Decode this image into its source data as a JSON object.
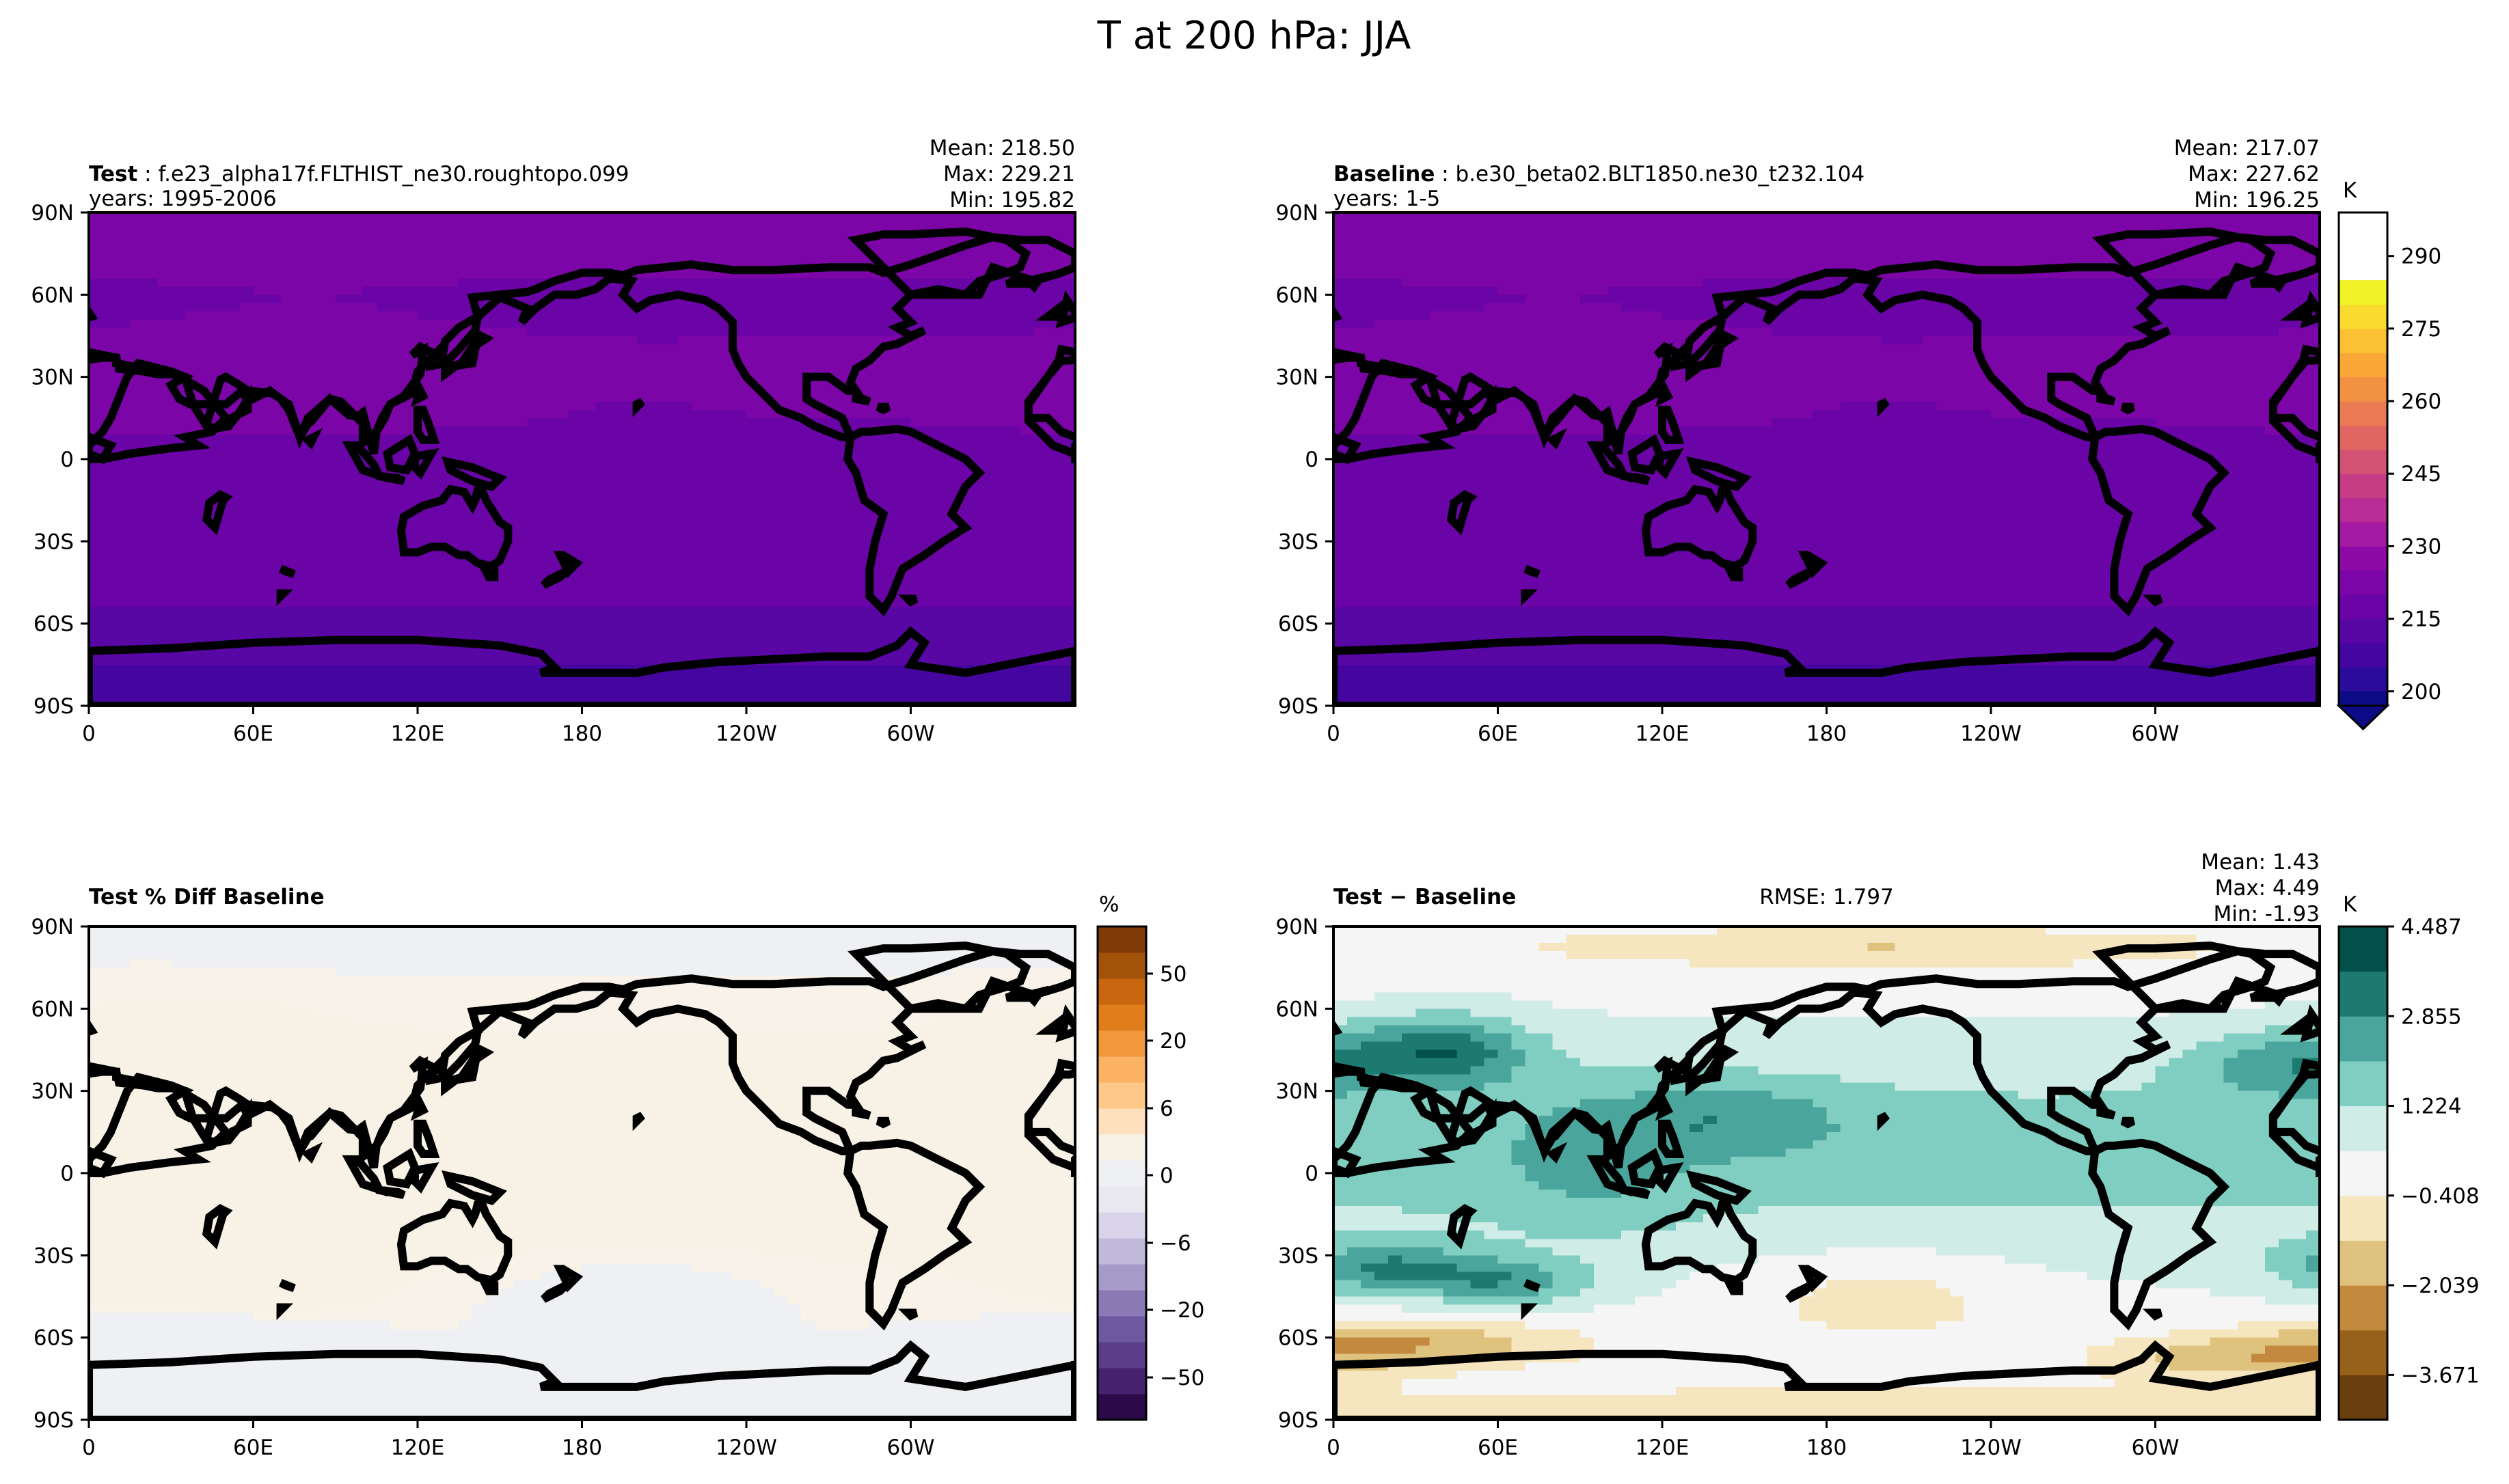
{
  "figure": {
    "title": "T at 200 hPa: JJA"
  },
  "colors": {
    "temp_ramp": [
      "#0d0a85",
      "#2b0b99",
      "#44069f",
      "#5806a4",
      "#6a04a6",
      "#7c05a8",
      "#8e0aa6",
      "#a41aa2",
      "#b72c95",
      "#c63d86",
      "#d45274",
      "#e06563",
      "#ea7b52",
      "#f39142",
      "#f9a838",
      "#fbc133",
      "#f9db2f",
      "#f1f227"
    ],
    "pct_ramp": [
      "#2d0a4a",
      "#46226f",
      "#5a3e8a",
      "#6e58a0",
      "#8a79b5",
      "#a59ac8",
      "#c1b9da",
      "#d8d3e8",
      "#e9e8f1",
      "#eff0f4",
      "#f8f1e6",
      "#fde0bd",
      "#fec988",
      "#fbb263",
      "#f1973c",
      "#e07e1c",
      "#c8650f",
      "#a3520a",
      "#7e3b08"
    ],
    "diff_ramp": [
      "#6b3f0d",
      "#97601b",
      "#c38a3f",
      "#dfc27d",
      "#f5e6c0",
      "#f5f5f5",
      "#d0ece7",
      "#80cdc1",
      "#4aa69c",
      "#1d7a70",
      "#01514a"
    ],
    "land_line": "#000000"
  },
  "chart_data": [
    {
      "type": "heatmap",
      "name": "test_map",
      "label_bold": "Test",
      "label_rest": "f.e23_alpha17f.FLTHIST_ne30.roughtopo.099",
      "years": "years: 1995-2006",
      "stats": [
        "Mean: 218.50",
        "Max: 229.21",
        "Min: 195.82"
      ],
      "mean": 218.5,
      "max": 229.21,
      "min": 195.82,
      "xticks": [
        "0",
        "60E",
        "120E",
        "180",
        "120W",
        "60W"
      ],
      "yticks": [
        "90N",
        "60N",
        "30N",
        "0",
        "30S",
        "60S",
        "90S"
      ],
      "xlim": [
        0,
        360
      ],
      "ylim": [
        -90,
        90
      ],
      "field": "temp"
    },
    {
      "type": "heatmap",
      "name": "baseline_map",
      "label_bold": "Baseline",
      "label_rest": "b.e30_beta02.BLT1850.ne30_t232.104",
      "years": "years: 1-5",
      "stats": [
        "Mean: 217.07",
        "Max: 227.62",
        "Min: 196.25"
      ],
      "mean": 217.07,
      "max": 227.62,
      "min": 196.25,
      "xticks": [
        "0",
        "60E",
        "120E",
        "180",
        "120W",
        "60W"
      ],
      "yticks": [
        "90N",
        "60N",
        "30N",
        "0",
        "30S",
        "60S",
        "90S"
      ],
      "xlim": [
        0,
        360
      ],
      "ylim": [
        -90,
        90
      ],
      "field": "temp",
      "colorbar": {
        "unit": "K",
        "range": [
          197,
          299
        ],
        "ticks": [
          200,
          215,
          230,
          245,
          260,
          275,
          290
        ]
      }
    },
    {
      "type": "heatmap",
      "name": "pct_diff_map",
      "label_bold": "Test % Diff Baseline",
      "xticks": [
        "0",
        "60E",
        "120E",
        "180",
        "120W",
        "60W"
      ],
      "yticks": [
        "90N",
        "60N",
        "30N",
        "0",
        "30S",
        "60S",
        "90S"
      ],
      "xlim": [
        0,
        360
      ],
      "ylim": [
        -90,
        90
      ],
      "field": "pct",
      "colorbar": {
        "unit": "%",
        "ticks": [
          50,
          20,
          6,
          0,
          -6,
          -20,
          -50
        ],
        "tick_labels": [
          "50",
          "20",
          "6",
          "0",
          "−6",
          "−20",
          "−50"
        ]
      }
    },
    {
      "type": "heatmap",
      "name": "diff_map",
      "label_bold": "Test − Baseline",
      "rmse": "RMSE: 1.797",
      "stats": [
        "Mean:  1.43",
        "Max:  4.49",
        "Min: -1.93"
      ],
      "mean": 1.43,
      "max": 4.49,
      "min": -1.93,
      "rmse_value": 1.797,
      "xticks": [
        "0",
        "60E",
        "120E",
        "180",
        "120W",
        "60W"
      ],
      "yticks": [
        "90N",
        "60N",
        "30N",
        "0",
        "30S",
        "60S",
        "90S"
      ],
      "xlim": [
        0,
        360
      ],
      "ylim": [
        -90,
        90
      ],
      "field": "diff",
      "colorbar": {
        "unit": "K",
        "range": [
          -4.487,
          4.487
        ],
        "ticks": [
          4.487,
          2.855,
          1.224,
          -0.408,
          -2.039,
          -3.671
        ],
        "tick_labels": [
          "4.487",
          "2.855",
          "1.224",
          "−0.408",
          "−2.039",
          "−3.671"
        ]
      }
    }
  ]
}
